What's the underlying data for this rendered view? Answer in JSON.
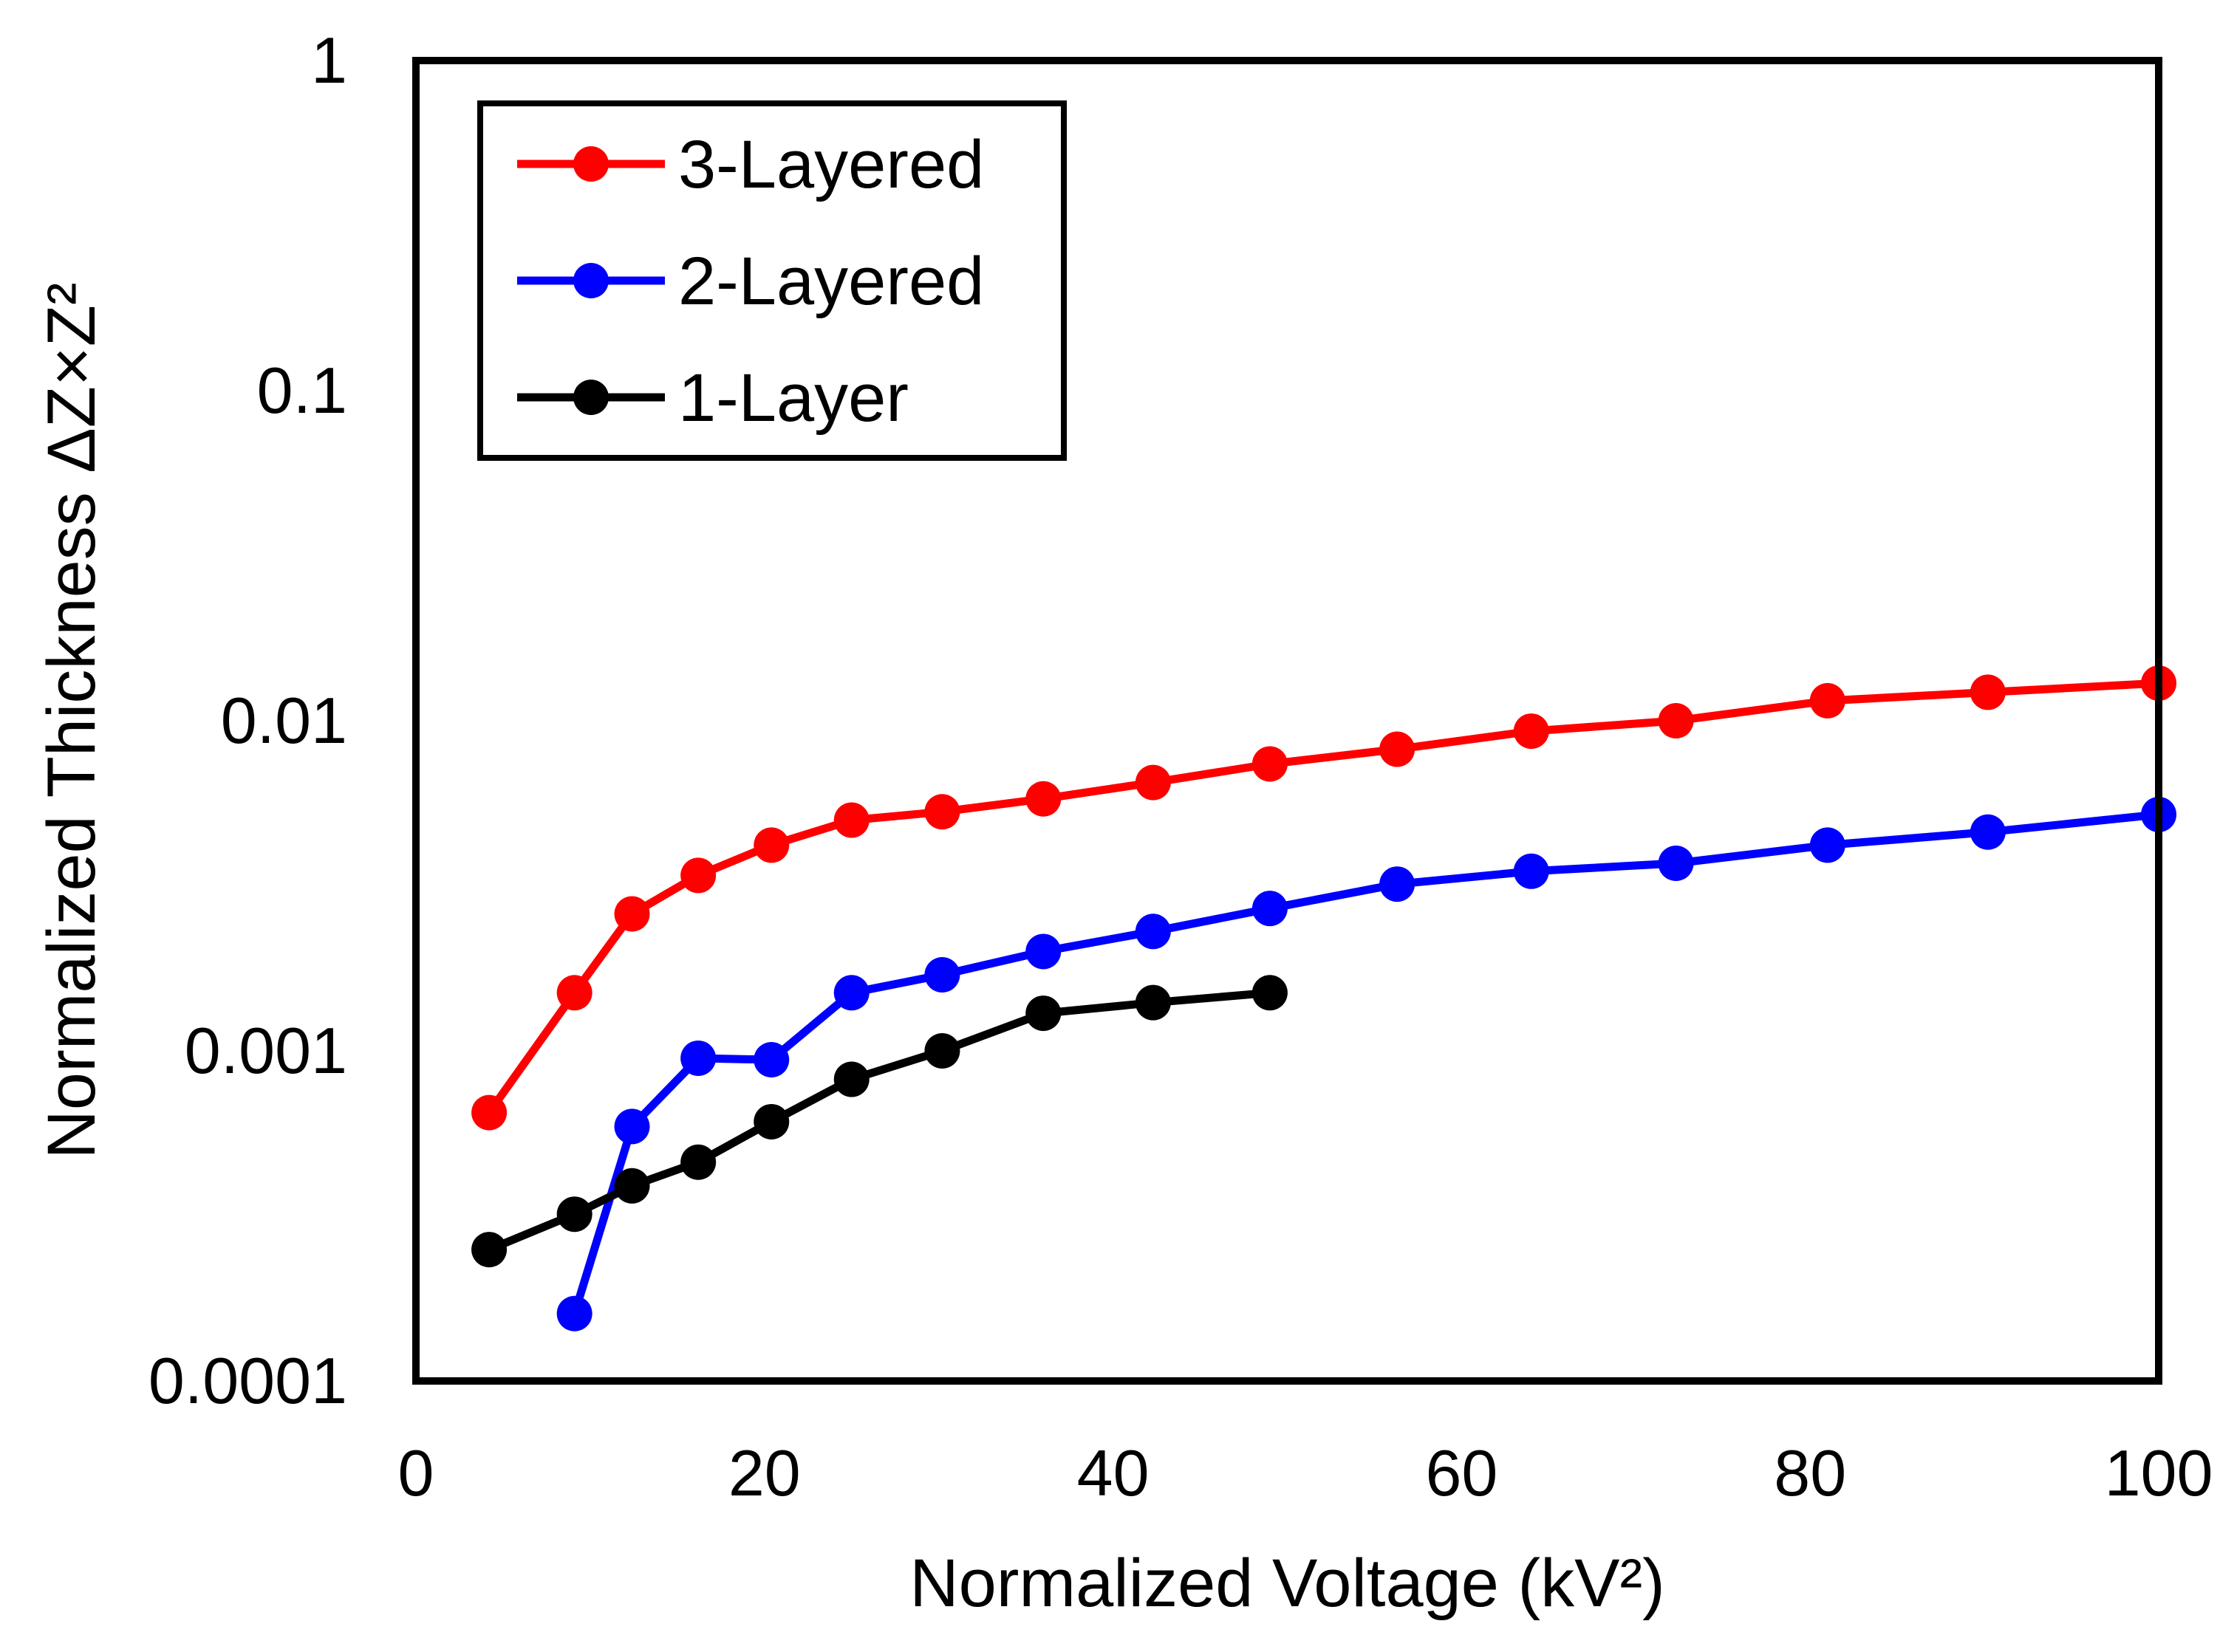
{
  "chart_data": {
    "type": "line",
    "xlabel": "Normalized Voltage (kV²)",
    "ylabel": "Normalized Thickness ΔZ×Z²",
    "xlim": [
      0,
      100
    ],
    "ylim": [
      0.0001,
      1
    ],
    "yscale": "log",
    "x_ticks": [
      "0",
      "20",
      "40",
      "60",
      "80",
      "100"
    ],
    "y_ticks": [
      "0.0001",
      "0.001",
      "0.01",
      "0.1",
      "1"
    ],
    "grid": false,
    "legend_position": "top-left",
    "series": [
      {
        "name": "3-Layered",
        "color": "#ff0000",
        "x": [
          4.2,
          9.1,
          12.4,
          16.2,
          20.4,
          25.0,
          30.2,
          36.0,
          42.3,
          49.0,
          56.3,
          64.0,
          72.3,
          81.0,
          90.2,
          100.0
        ],
        "y": [
          0.00065,
          0.0015,
          0.0026,
          0.0034,
          0.0042,
          0.005,
          0.0053,
          0.0058,
          0.0065,
          0.0074,
          0.0082,
          0.0093,
          0.01,
          0.0115,
          0.0122,
          0.013
        ]
      },
      {
        "name": "2-Layered",
        "color": "#0000ff",
        "x": [
          9.1,
          12.4,
          16.2,
          20.4,
          25.0,
          30.2,
          36.0,
          42.3,
          49.0,
          56.3,
          64.0,
          72.3,
          81.0,
          90.2,
          100.0
        ],
        "y": [
          0.00016,
          0.00059,
          0.00095,
          0.00094,
          0.0015,
          0.0017,
          0.002,
          0.0023,
          0.0027,
          0.0032,
          0.0035,
          0.0037,
          0.0042,
          0.0046,
          0.0052
        ]
      },
      {
        "name": "1-Layer",
        "color": "#000000",
        "x": [
          4.2,
          9.1,
          12.4,
          16.2,
          20.4,
          25.0,
          30.2,
          36.0,
          42.3,
          49.0
        ],
        "y": [
          0.00025,
          0.00032,
          0.00039,
          0.00046,
          0.00061,
          0.00082,
          0.001,
          0.0013,
          0.0014,
          0.0015
        ]
      }
    ]
  }
}
